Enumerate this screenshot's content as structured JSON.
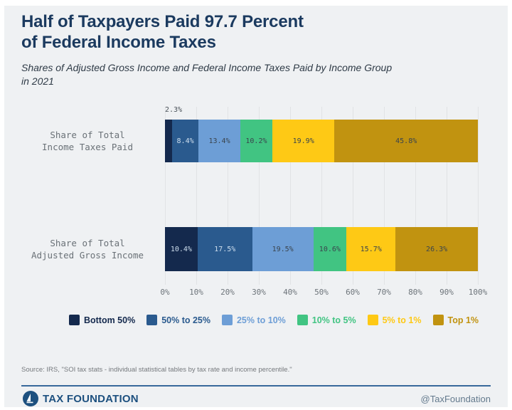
{
  "page": {
    "background": "#ffffff",
    "panel_background": "#eff1f3"
  },
  "header": {
    "title_line1": "Half of Taxpayers Paid 97.7 Percent",
    "title_line2": "of Federal Income Taxes",
    "subtitle_line1": "Shares of Adjusted Gross Income and Federal Income Taxes Paid by Income Group",
    "subtitle_line2": "in 2021",
    "title_color": "#1b3a5f"
  },
  "chart_data": {
    "type": "bar",
    "variant": "horizontal_stacked",
    "unit": "%",
    "x_axis": {
      "min": 0,
      "max": 100,
      "ticks": [
        "0%",
        "10%",
        "20%",
        "30%",
        "40%",
        "50%",
        "60%",
        "70%",
        "80%",
        "90%",
        "100%"
      ],
      "grid": true
    },
    "legend_position": "bottom",
    "groups": [
      {
        "label": "Bottom 50%",
        "color": "#14294d"
      },
      {
        "label": "50% to 25%",
        "color": "#2a5a8e"
      },
      {
        "label": "25% to 10%",
        "color": "#6d9ed6"
      },
      {
        "label": "10% to 5%",
        "color": "#41c482"
      },
      {
        "label": "5% to 1%",
        "color": "#fec915"
      },
      {
        "label": "Top 1%",
        "color": "#c19310"
      }
    ],
    "label_tones": {
      "light": "#cfdfee",
      "dark": "#3a444d",
      "above": "#4a5259"
    },
    "bars": [
      {
        "category": "Share of Total Income Taxes Paid",
        "label_lines": [
          "Share of Total",
          "Income Taxes Paid"
        ],
        "segments": [
          {
            "group": 0,
            "value": 2.3,
            "label": "2.3%",
            "placement": "above",
            "tone": "above"
          },
          {
            "group": 1,
            "value": 8.4,
            "label": "8.4%",
            "placement": "inside",
            "tone": "light"
          },
          {
            "group": 2,
            "value": 13.4,
            "label": "13.4%",
            "placement": "inside",
            "tone": "dark"
          },
          {
            "group": 3,
            "value": 10.2,
            "label": "10.2%",
            "placement": "inside",
            "tone": "dark"
          },
          {
            "group": 4,
            "value": 19.9,
            "label": "19.9%",
            "placement": "inside",
            "tone": "dark"
          },
          {
            "group": 5,
            "value": 45.8,
            "label": "45.8%",
            "placement": "inside",
            "tone": "dark"
          }
        ]
      },
      {
        "category": "Share of Total Adjusted Gross Income",
        "label_lines": [
          "Share of Total",
          "Adjusted Gross Income"
        ],
        "segments": [
          {
            "group": 0,
            "value": 10.4,
            "label": "10.4%",
            "placement": "inside",
            "tone": "light"
          },
          {
            "group": 1,
            "value": 17.5,
            "label": "17.5%",
            "placement": "inside",
            "tone": "light"
          },
          {
            "group": 2,
            "value": 19.5,
            "label": "19.5%",
            "placement": "inside",
            "tone": "dark"
          },
          {
            "group": 3,
            "value": 10.6,
            "label": "10.6%",
            "placement": "inside",
            "tone": "dark"
          },
          {
            "group": 4,
            "value": 15.7,
            "label": "15.7%",
            "placement": "inside",
            "tone": "dark"
          },
          {
            "group": 5,
            "value": 26.3,
            "label": "26.3%",
            "placement": "inside",
            "tone": "dark"
          }
        ]
      }
    ]
  },
  "footer": {
    "source": "Source: IRS, \"SOI tax stats - individual statistical tables by tax rate and income percentile.\"",
    "brand": "TAX FOUNDATION",
    "handle": "@TaxFoundation"
  }
}
